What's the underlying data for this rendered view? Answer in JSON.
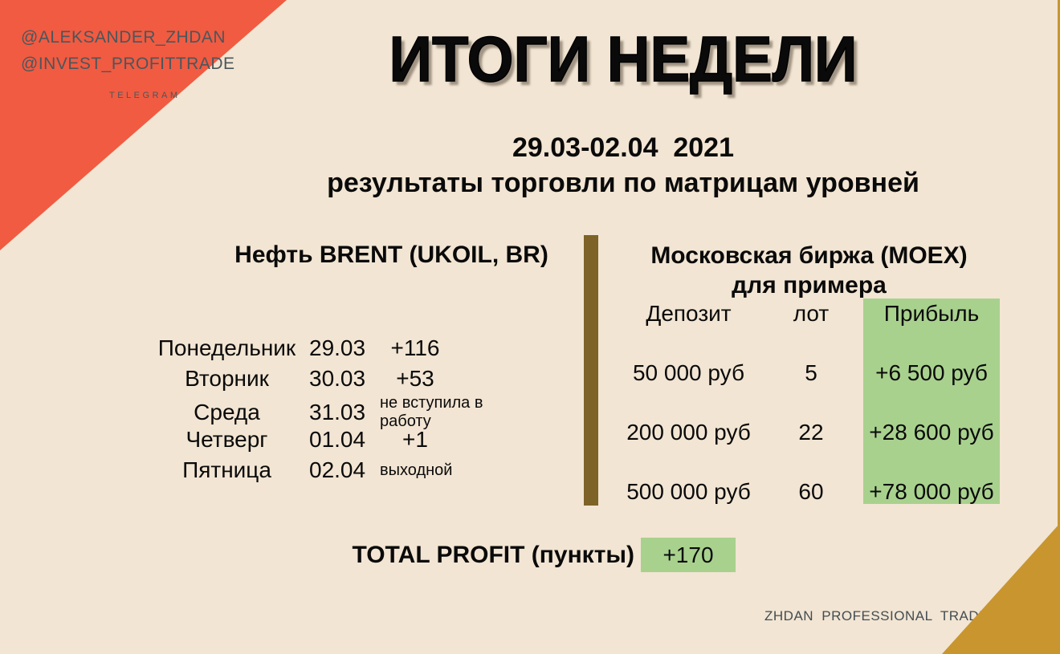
{
  "badge": {
    "handle1": "@ALEKSANDER_ZHDAN",
    "handle2": "@INVEST_PROFITTRADE",
    "platform": "TELEGRAM"
  },
  "title": "ИТОГИ НЕДЕЛИ",
  "subtitle": {
    "dates": "29.03-02.04  2021",
    "line2": "результаты торговли по матрицам уровней"
  },
  "brent": {
    "title": "Нефть BRENT (UKOIL, BR)",
    "rows": [
      {
        "day": "Понедельник",
        "date": "29.03",
        "result": "+116"
      },
      {
        "day": "Вторник",
        "date": "30.03",
        "result": "+53"
      },
      {
        "day": "Среда",
        "date": "31.03",
        "result": "не вступила в работу"
      },
      {
        "day": "Четверг",
        "date": "01.04",
        "result": "+1"
      },
      {
        "day": "Пятница",
        "date": "02.04",
        "result": "выходной"
      }
    ]
  },
  "moex": {
    "title_line1": "Московская биржа (MOEX)",
    "title_line2": "для примера",
    "headers": {
      "deposit": "Депозит",
      "lot": "лот",
      "profit": "Прибыль"
    },
    "rows": [
      {
        "deposit": "50 000 руб",
        "lot": "5",
        "profit": "+6 500 руб"
      },
      {
        "deposit": "200 000 руб",
        "lot": "22",
        "profit": "+28 600 руб"
      },
      {
        "deposit": "500 000 руб",
        "lot": "60",
        "profit": "+78 000 руб"
      }
    ]
  },
  "total": {
    "label": "TOTAL PROFIT (пункты)",
    "value": "+170"
  },
  "footer": {
    "credit": "ZHDAN PROFESSIONAL TRADER"
  },
  "colors": {
    "background": "#f2e5d3",
    "accent_orange": "#f15b41",
    "accent_gold": "#c9952f",
    "divider_brown": "#7d6327",
    "profit_green": "#a9d18e",
    "handle_gray": "#4b565c"
  }
}
